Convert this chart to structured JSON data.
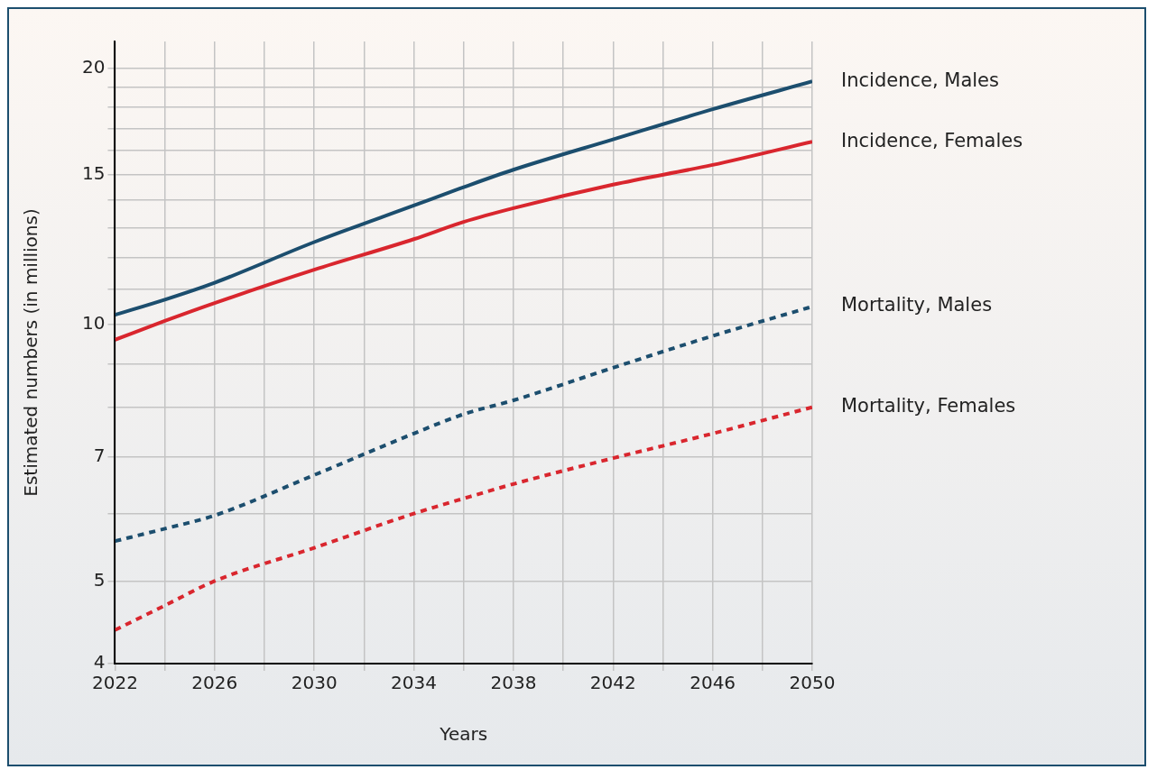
{
  "chart_data": {
    "type": "line",
    "xlabel": "Years",
    "ylabel": "Estimated numbers (in millions)",
    "x": [
      2022,
      2024,
      2026,
      2030,
      2034,
      2036,
      2038,
      2042,
      2046,
      2050
    ],
    "series": [
      {
        "name": "Incidence, Males",
        "color": "#1c4e6e",
        "line_style": "solid",
        "values": [
          10.27,
          10.7,
          11.2,
          12.5,
          13.8,
          14.5,
          15.2,
          16.5,
          17.9,
          19.3
        ]
      },
      {
        "name": "Incidence, Females",
        "color": "#d9262e",
        "line_style": "solid",
        "values": [
          9.6,
          10.1,
          10.6,
          11.6,
          12.6,
          13.2,
          13.7,
          14.6,
          15.4,
          16.4
        ]
      },
      {
        "name": "Mortality, Males",
        "color": "#1c4e6e",
        "line_style": "dashed",
        "values": [
          5.57,
          5.76,
          5.97,
          6.66,
          7.45,
          7.85,
          8.15,
          8.9,
          9.7,
          10.5
        ]
      },
      {
        "name": "Mortality, Females",
        "color": "#d9262e",
        "line_style": "dashed",
        "values": [
          4.38,
          4.68,
          5.0,
          5.47,
          6.0,
          6.25,
          6.5,
          6.97,
          7.45,
          8.0
        ]
      }
    ],
    "log": "y",
    "grid": true,
    "legend": false,
    "xlim": [
      2022,
      2050
    ],
    "ylim": [
      4,
      21.5
    ],
    "xticks": [
      2022,
      {
        "value": 2024,
        "label": null
      },
      2026,
      {
        "value": 2028,
        "label": null
      },
      2030,
      {
        "value": 2032,
        "label": null
      },
      2034,
      {
        "value": 2036,
        "label": null
      },
      2038,
      {
        "value": 2040,
        "label": null
      },
      2042,
      {
        "value": 2044,
        "label": null
      },
      2046,
      {
        "value": 2048,
        "label": null
      },
      2050
    ],
    "yticks": [
      4,
      5,
      {
        "value": 6,
        "label": null
      },
      7,
      {
        "value": 8,
        "label": null
      },
      {
        "value": 9,
        "label": null
      },
      10,
      {
        "value": 11,
        "label": null
      },
      {
        "value": 12,
        "label": null
      },
      {
        "value": 13,
        "label": null
      },
      {
        "value": 14,
        "label": null
      },
      15,
      {
        "value": 16,
        "label": null
      },
      {
        "value": 17,
        "label": null
      },
      {
        "value": 18,
        "label": null
      },
      {
        "value": 19,
        "label": null
      },
      20
    ]
  }
}
